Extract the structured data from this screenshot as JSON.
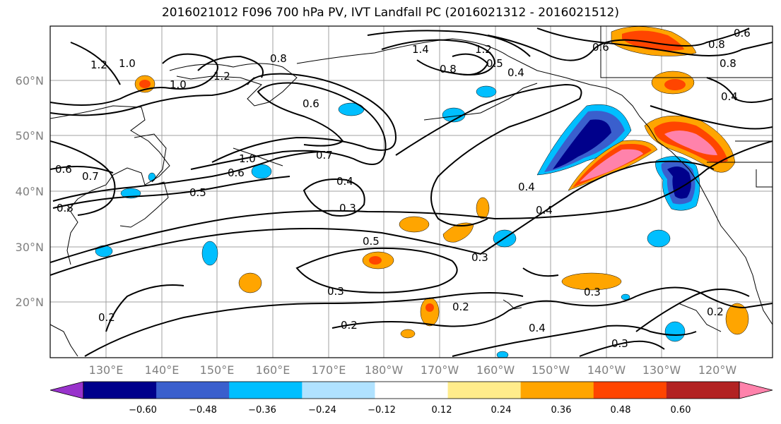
{
  "title": "2016021012 F096 700 hPa PV, IVT Landfall PC (2016021312 - 2016021512)",
  "latitude_labels": [
    "60°N",
    "50°N",
    "40°N",
    "30°N",
    "20°N"
  ],
  "longitude_labels": [
    "130°E",
    "140°E",
    "150°E",
    "160°E",
    "170°E",
    "180°W",
    "170°W",
    "160°W",
    "150°W",
    "140°W",
    "130°W",
    "120°W"
  ],
  "contour_labels": [
    "1.2",
    "1.0",
    "1.0",
    "1.2",
    "0.8",
    "0.6",
    "1.4",
    "1.2",
    "0.8",
    "0.5",
    "0.4",
    "0.6",
    "0.8",
    "0.8",
    "0.6",
    "0.4",
    "0.6",
    "0.7",
    "0.8",
    "1.0",
    "0.7",
    "0.6",
    "0.5",
    "0.4",
    "0.3",
    "0.4",
    "0.4",
    "0.5",
    "0.3",
    "0.3",
    "0.2",
    "0.3",
    "0.4",
    "0.3",
    "0.2",
    "0.2",
    "0.2"
  ],
  "colorbar": {
    "colors": [
      "#9933cc",
      "#00008b",
      "#3a5fcd",
      "#00bfff",
      "#b0e2ff",
      "#ffffff",
      "#ffec8b",
      "#ffa500",
      "#ff4500",
      "#b22222",
      "#ff82ab"
    ],
    "tick_labels": [
      "−0.60",
      "−0.48",
      "−0.36",
      "−0.24",
      "−0.12",
      "0.12",
      "0.24",
      "0.36",
      "0.48",
      "0.60"
    ]
  }
}
